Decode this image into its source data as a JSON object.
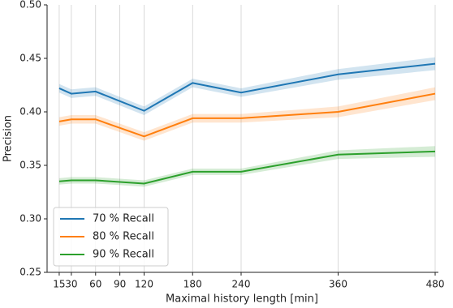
{
  "chart_data": {
    "type": "line",
    "x_label": "Maximal history length [min]",
    "y_label": "Precision",
    "x": [
      15,
      30,
      60,
      120,
      180,
      240,
      360,
      480
    ],
    "series": [
      {
        "name": "70 % Recall",
        "color": "#1f77b4",
        "values": [
          0.422,
          0.417,
          0.419,
          0.401,
          0.427,
          0.418,
          0.435,
          0.445
        ],
        "errors": [
          0.004,
          0.004,
          0.004,
          0.004,
          0.004,
          0.004,
          0.005,
          0.006
        ]
      },
      {
        "name": "80 % Recall",
        "color": "#ff7f0e",
        "values": [
          0.391,
          0.393,
          0.393,
          0.377,
          0.394,
          0.394,
          0.4,
          0.417
        ],
        "errors": [
          0.004,
          0.004,
          0.004,
          0.004,
          0.004,
          0.004,
          0.005,
          0.006
        ]
      },
      {
        "name": "90 % Recall",
        "color": "#2ca02c",
        "values": [
          0.335,
          0.336,
          0.336,
          0.333,
          0.344,
          0.344,
          0.36,
          0.363
        ],
        "errors": [
          0.003,
          0.003,
          0.003,
          0.003,
          0.003,
          0.003,
          0.004,
          0.005
        ]
      }
    ],
    "xlim": [
      0,
      484
    ],
    "xticks": [
      15,
      30,
      60,
      90,
      120,
      180,
      240,
      360,
      480
    ],
    "ylim": [
      0.25,
      0.5
    ],
    "yticks": [
      {
        "value": 0.25,
        "label": "0.25"
      },
      {
        "value": 0.3,
        "label": "0.30"
      },
      {
        "value": 0.35,
        "label": "0.35"
      },
      {
        "value": 0.4,
        "label": "0.40"
      },
      {
        "value": 0.45,
        "label": "0.45"
      },
      {
        "value": 0.5,
        "label": "0.50"
      }
    ],
    "grid": "x",
    "legend": "lower left"
  }
}
